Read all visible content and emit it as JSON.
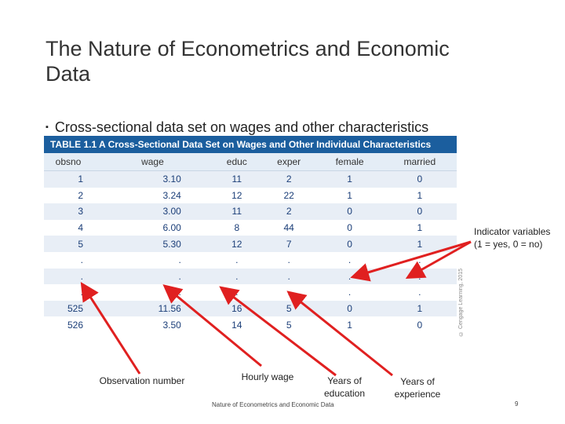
{
  "title": "The Nature of Econometrics and Economic Data",
  "bullet": "Cross-sectional data set on wages and other characteristics",
  "table": {
    "caption": "TABLE 1.1  A Cross-Sectional Data Set on Wages and Other Individual Characteristics",
    "columns": [
      "obsno",
      "wage",
      "educ",
      "exper",
      "female",
      "married"
    ],
    "rows": [
      [
        "1",
        "3.10",
        "11",
        "2",
        "1",
        "0"
      ],
      [
        "2",
        "3.24",
        "12",
        "22",
        "1",
        "1"
      ],
      [
        "3",
        "3.00",
        "11",
        "2",
        "0",
        "0"
      ],
      [
        "4",
        "6.00",
        "8",
        "44",
        "0",
        "1"
      ],
      [
        "5",
        "5.30",
        "12",
        "7",
        "0",
        "1"
      ],
      [
        ".",
        ".",
        ".",
        ".",
        ".",
        "."
      ],
      [
        ".",
        ".",
        ".",
        ".",
        ".",
        "."
      ],
      [
        ".",
        ".",
        ".",
        ".",
        ".",
        "."
      ],
      [
        "525",
        "11.56",
        "16",
        "5",
        "0",
        "1"
      ],
      [
        "526",
        "3.50",
        "14",
        "5",
        "1",
        "0"
      ]
    ]
  },
  "copyright": "© Cengage Learning, 2015",
  "annotations": {
    "indicator": [
      "Indicator variables",
      "(1 = yes, 0 = no)"
    ],
    "observation": "Observation number",
    "hourly_wage": "Hourly wage",
    "education": [
      "Years of",
      "education"
    ],
    "experience": [
      "Years of",
      "experience"
    ]
  },
  "footer": "Nature of Econometrics and Economic Data",
  "page_number": "9",
  "colors": {
    "table_header": "#1b5e9e",
    "arrow": "#e02020"
  }
}
